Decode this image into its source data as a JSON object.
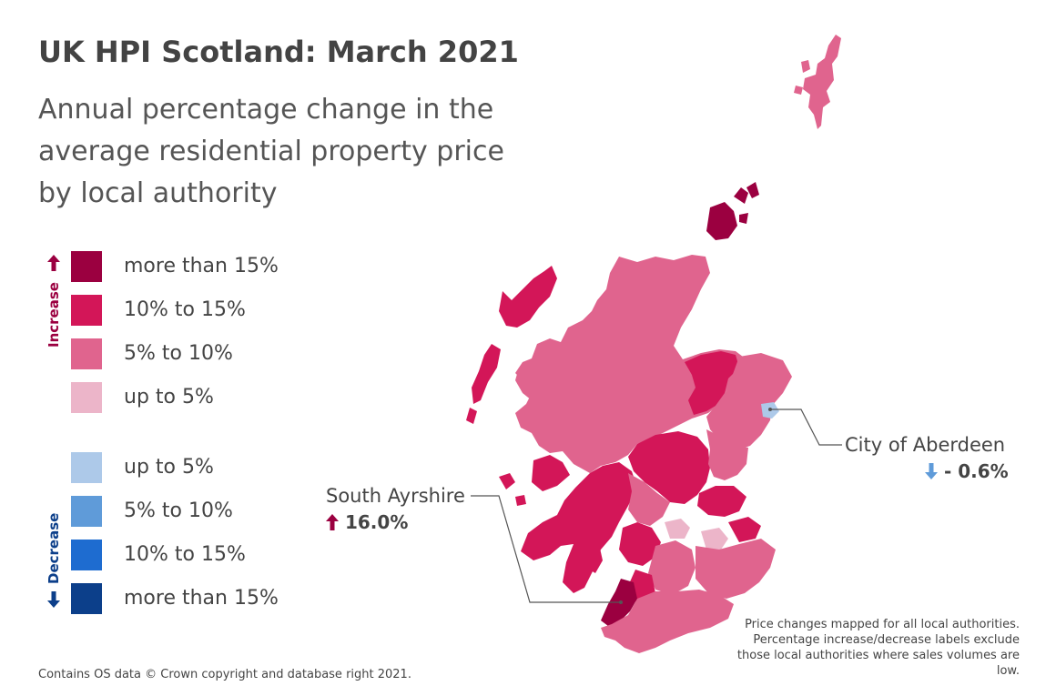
{
  "title": "UK HPI Scotland: March 2021",
  "subtitle": "Annual percentage change in the average residential property price by local authority",
  "legend": {
    "increase_label": "Increase",
    "decrease_label": "Decrease",
    "items": [
      {
        "label": "more than 15%",
        "color": "#9b0040"
      },
      {
        "label": "10% to 15%",
        "color": "#d31658"
      },
      {
        "label": "5% to 10%",
        "color": "#e0648e"
      },
      {
        "label": "up to 5%",
        "color": "#ecb5c9"
      },
      {
        "label": "up to 5%",
        "color": "#adc9e9"
      },
      {
        "label": "5% to 10%",
        "color": "#5f9bd9"
      },
      {
        "label": "10% to 15%",
        "color": "#1e6cd0"
      },
      {
        "label": "more than 15%",
        "color": "#0c3f8a"
      }
    ]
  },
  "callouts": {
    "south_ayrshire": {
      "name": "South Ayrshire",
      "value": "16.0%",
      "direction": "increase"
    },
    "aberdeen": {
      "name": "City of Aberdeen",
      "value": "- 0.6%",
      "direction": "decrease"
    }
  },
  "footer": "Contains OS data © Crown copyright and database right 2021.",
  "note": "Price changes mapped for all local authorities. Percentage increase/decrease labels exclude those local authorities where sales volumes are low."
}
